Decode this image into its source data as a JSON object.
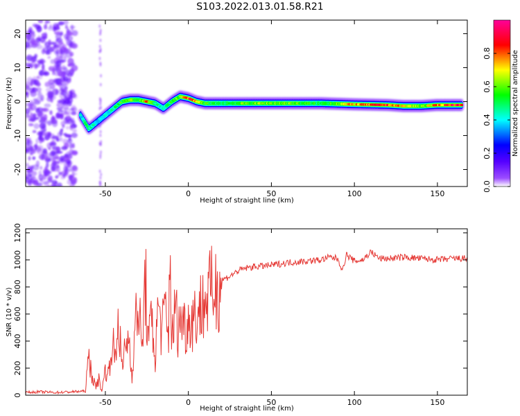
{
  "title": "S103.2022.013.01.58.R21",
  "colors": {
    "spectrum_low": "#b388ff",
    "snr_line": "#e53935"
  },
  "colorbar": {
    "label": "Normalized spectral amplitude",
    "ticks": [
      0.0,
      0.2,
      0.4,
      0.6,
      0.8
    ],
    "tick_labels": [
      "0.0",
      "0.2",
      "0.4",
      "0.6",
      "0.8"
    ],
    "range": [
      0,
      1
    ],
    "colormap": [
      "#ffffff",
      "#7b00ff",
      "#0000ff",
      "#00ffff",
      "#00ff00",
      "#ffff00",
      "#ff0000",
      "#ff0099"
    ]
  },
  "chart_data": [
    {
      "type": "heatmap",
      "title": "",
      "xlabel": "Height of straight line (km)",
      "ylabel": "Frequency (Hz)",
      "xlim": [
        -98,
        168
      ],
      "ylim": [
        -25,
        24
      ],
      "x_ticks": [
        -50,
        0,
        50,
        100,
        150
      ],
      "x_tick_labels": [
        "-50",
        "0",
        "50",
        "100",
        "150"
      ],
      "y_ticks": [
        -20,
        -10,
        0,
        10,
        20
      ],
      "y_tick_labels": [
        "-20",
        "-10",
        "0",
        "10",
        "20"
      ],
      "grid": false,
      "ridge": {
        "x": [
          -65,
          -60,
          -55,
          -50,
          -45,
          -40,
          -35,
          -30,
          -25,
          -20,
          -15,
          -10,
          -5,
          0,
          5,
          10,
          20,
          40,
          60,
          80,
          100,
          120,
          130,
          140,
          150,
          160,
          165
        ],
        "freq": [
          -4,
          -8,
          -6,
          -4,
          -2,
          0,
          0.5,
          0.5,
          0,
          -0.5,
          -2,
          0,
          1.5,
          1,
          0,
          -0.5,
          -0.5,
          -0.5,
          -0.5,
          -0.5,
          -0.8,
          -1,
          -1.3,
          -1.3,
          -1,
          -1,
          -1
        ],
        "amplitude": [
          0.4,
          0.5,
          0.35,
          0.4,
          0.45,
          0.55,
          0.6,
          0.5,
          0.75,
          0.5,
          0.4,
          0.55,
          0.6,
          0.85,
          0.7,
          0.55,
          0.5,
          0.6,
          0.6,
          0.5,
          0.75,
          0.85,
          0.7,
          0.6,
          0.75,
          0.9,
          0.9
        ]
      }
    },
    {
      "type": "line",
      "title": "",
      "xlabel": "Height of straight line (km)",
      "ylabel": "SNR (10 * v/v)",
      "xlim": [
        -98,
        168
      ],
      "ylim": [
        0,
        1230
      ],
      "x_ticks": [
        -50,
        0,
        50,
        100,
        150
      ],
      "x_tick_labels": [
        "-50",
        "0",
        "50",
        "100",
        "150"
      ],
      "y_ticks": [
        0,
        200,
        400,
        600,
        800,
        1000,
        1200
      ],
      "y_tick_labels": [
        "0",
        "200",
        "400",
        "600",
        "800",
        "1000",
        "1200"
      ],
      "grid": false,
      "series": [
        {
          "x": [
            -98,
            -90,
            -80,
            -70,
            -62,
            -60,
            -58,
            -56,
            -54,
            -52,
            -50,
            -48,
            -46,
            -44,
            -42,
            -40,
            -38,
            -36,
            -34,
            -32,
            -30,
            -28,
            -26,
            -24,
            -22,
            -20,
            -18,
            -16,
            -14,
            -12,
            -11,
            -10,
            -8,
            -6,
            -4,
            -2,
            0,
            5,
            10,
            15,
            20,
            25,
            30,
            35,
            40,
            50,
            60,
            70,
            80,
            85,
            90,
            93,
            95,
            100,
            105,
            110,
            115,
            120,
            130,
            140,
            150,
            160,
            168
          ],
          "values": [
            20,
            25,
            20,
            25,
            30,
            280,
            150,
            60,
            120,
            30,
            200,
            150,
            420,
            250,
            600,
            180,
            350,
            450,
            150,
            500,
            700,
            300,
            880,
            350,
            600,
            250,
            700,
            450,
            650,
            400,
            1230,
            350,
            650,
            480,
            600,
            500,
            550,
            600,
            700,
            780,
            850,
            880,
            920,
            940,
            950,
            960,
            980,
            990,
            1000,
            1020,
            1010,
            920,
            1040,
            990,
            1000,
            1060,
            1010,
            1010,
            1020,
            1010,
            1000,
            1010,
            1010
          ]
        }
      ]
    }
  ]
}
